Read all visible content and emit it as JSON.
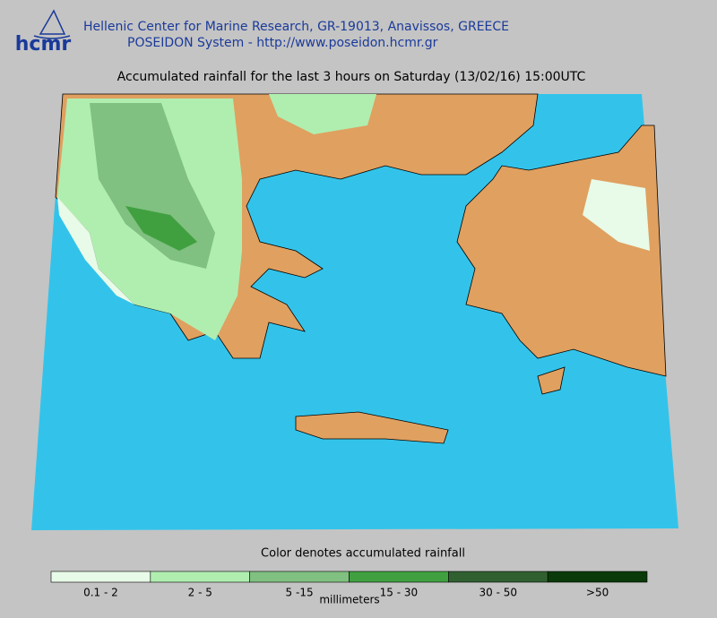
{
  "header": {
    "logo": "hcmr",
    "line1": "Hellenic Center for Marine Research, GR-19013, Anavissos, GREECE",
    "line2": "POSEIDON System - http://www.poseidon.hcmr.gr"
  },
  "title": "Accumulated rainfall for the last 3 hours on Saturday (13/02/16) 15:00UTC",
  "legend": {
    "caption": "Color denotes accumulated rainfall",
    "unit": "millimeters",
    "items": [
      {
        "label": "0.1 - 2",
        "color": "#e8fae8"
      },
      {
        "label": "2 - 5",
        "color": "#b0eeb0"
      },
      {
        "label": "5 -15",
        "color": "#80c080"
      },
      {
        "label": "15 - 30",
        "color": "#40a040"
      },
      {
        "label": "30 - 50",
        "color": "#306030"
      },
      {
        "label": ">50",
        "color": "#0a3a0a"
      }
    ]
  }
}
